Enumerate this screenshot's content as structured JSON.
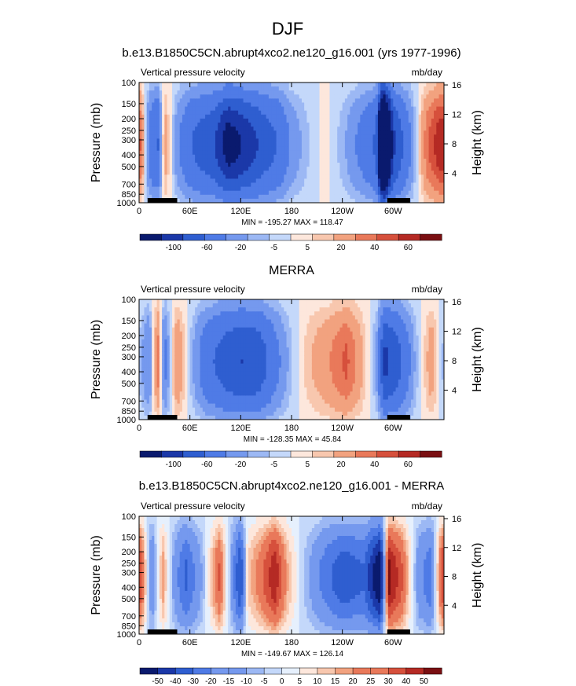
{
  "figure": {
    "title": "DJF"
  },
  "chart_data": [
    {
      "type": "heatmap",
      "title": "b.e13.B1850C5CN.abrupt4xco2.ne120_g16.001 (yrs 1977-1996)",
      "left_label": "Vertical pressure velocity",
      "right_label": "mb/day",
      "ylabel": "Pressure (mb)",
      "ylabel_right": "Height (km)",
      "pressure_ticks": [
        "100",
        "150",
        "200",
        "250",
        "300",
        "400",
        "500",
        "700",
        "850",
        "1000"
      ],
      "pressure_values": [
        100,
        150,
        200,
        250,
        300,
        400,
        500,
        700,
        850,
        1000
      ],
      "height_ticks": [
        "4",
        "8",
        "12",
        "16"
      ],
      "xticks": [
        "0",
        "60E",
        "120E",
        "180",
        "120W",
        "60W"
      ],
      "xtick_lon": [
        0,
        60,
        120,
        180,
        240,
        300
      ],
      "xlim": [
        0,
        360
      ],
      "ylim_mb": [
        1000,
        100
      ],
      "stats": "MIN = -195.27  MAX = 118.47",
      "colorbar_labels": [
        "-100",
        "-60",
        "-20",
        "-5",
        "5",
        "20",
        "40",
        "60"
      ],
      "colorbar_levels": [
        -100,
        -80,
        -60,
        -40,
        -20,
        -10,
        -5,
        0,
        5,
        10,
        20,
        30,
        40,
        50,
        60
      ],
      "bands": [
        {
          "lon": 0,
          "v": 35
        },
        {
          "lon": 12,
          "v": -25
        },
        {
          "lon": 22,
          "v": -40
        },
        {
          "lon": 30,
          "v": 15
        },
        {
          "lon": 45,
          "v": -15
        },
        {
          "lon": 60,
          "v": -35
        },
        {
          "lon": 90,
          "v": -55
        },
        {
          "lon": 105,
          "v": -85
        },
        {
          "lon": 118,
          "v": -75
        },
        {
          "lon": 135,
          "v": -60
        },
        {
          "lon": 150,
          "v": -45
        },
        {
          "lon": 165,
          "v": -35
        },
        {
          "lon": 180,
          "v": -15
        },
        {
          "lon": 200,
          "v": -5
        },
        {
          "lon": 220,
          "v": 3
        },
        {
          "lon": 245,
          "v": -10
        },
        {
          "lon": 265,
          "v": -25
        },
        {
          "lon": 280,
          "v": -40
        },
        {
          "lon": 288,
          "v": -190
        },
        {
          "lon": 300,
          "v": -60
        },
        {
          "lon": 320,
          "v": -20
        },
        {
          "lon": 340,
          "v": 25
        },
        {
          "lon": 355,
          "v": 45
        }
      ]
    },
    {
      "type": "heatmap",
      "title": "MERRA",
      "left_label": "Vertical pressure velocity",
      "right_label": "mb/day",
      "ylabel": "Pressure (mb)",
      "ylabel_right": "Height (km)",
      "pressure_ticks": [
        "100",
        "150",
        "200",
        "250",
        "300",
        "400",
        "500",
        "700",
        "850",
        "1000"
      ],
      "pressure_values": [
        100,
        150,
        200,
        250,
        300,
        400,
        500,
        700,
        850,
        1000
      ],
      "height_ticks": [
        "4",
        "8",
        "12",
        "16"
      ],
      "xticks": [
        "0",
        "60E",
        "120E",
        "180",
        "120W",
        "60W"
      ],
      "xtick_lon": [
        0,
        60,
        120,
        180,
        240,
        300
      ],
      "xlim": [
        0,
        360
      ],
      "ylim_mb": [
        1000,
        100
      ],
      "stats": "MIN = -128.35  MAX = 45.84",
      "colorbar_labels": [
        "-100",
        "-60",
        "-20",
        "-5",
        "5",
        "20",
        "40",
        "60"
      ],
      "colorbar_levels": [
        -100,
        -80,
        -60,
        -40,
        -20,
        -10,
        -5,
        0,
        5,
        10,
        20,
        30,
        40,
        50,
        60
      ],
      "bands": [
        {
          "lon": 0,
          "v": -5
        },
        {
          "lon": 12,
          "v": -20
        },
        {
          "lon": 22,
          "v": 25
        },
        {
          "lon": 30,
          "v": -25
        },
        {
          "lon": 45,
          "v": 20
        },
        {
          "lon": 60,
          "v": -5
        },
        {
          "lon": 80,
          "v": -30
        },
        {
          "lon": 100,
          "v": -45
        },
        {
          "lon": 120,
          "v": -55
        },
        {
          "lon": 140,
          "v": -50
        },
        {
          "lon": 160,
          "v": -25
        },
        {
          "lon": 180,
          "v": -5
        },
        {
          "lon": 200,
          "v": 8
        },
        {
          "lon": 225,
          "v": 18
        },
        {
          "lon": 245,
          "v": 30
        },
        {
          "lon": 262,
          "v": 12
        },
        {
          "lon": 280,
          "v": -10
        },
        {
          "lon": 290,
          "v": -60
        },
        {
          "lon": 305,
          "v": -45
        },
        {
          "lon": 325,
          "v": -10
        },
        {
          "lon": 345,
          "v": 15
        },
        {
          "lon": 358,
          "v": -5
        }
      ]
    },
    {
      "type": "heatmap",
      "title": "b.e13.B1850C5CN.abrupt4xco2.ne120_g16.001 - MERRA",
      "left_label": "Vertical pressure velocity",
      "right_label": "mb/day",
      "ylabel": "Pressure (mb)",
      "ylabel_right": "Height (km)",
      "pressure_ticks": [
        "100",
        "150",
        "200",
        "250",
        "300",
        "400",
        "500",
        "700",
        "850",
        "1000"
      ],
      "pressure_values": [
        100,
        150,
        200,
        250,
        300,
        400,
        500,
        700,
        850,
        1000
      ],
      "height_ticks": [
        "4",
        "8",
        "12",
        "16"
      ],
      "xticks": [
        "0",
        "60E",
        "120E",
        "180",
        "120W",
        "60W"
      ],
      "xtick_lon": [
        0,
        60,
        120,
        180,
        240,
        300
      ],
      "xlim": [
        0,
        360
      ],
      "ylim_mb": [
        1000,
        100
      ],
      "stats": "MIN = -149.67  MAX = 126.14",
      "colorbar_labels": [
        "-50",
        "-40",
        "-30",
        "-20",
        "-15",
        "-10",
        "-5",
        "0",
        "5",
        "10",
        "15",
        "20",
        "25",
        "30",
        "40",
        "50"
      ],
      "colorbar_levels": [
        -60,
        -50,
        -40,
        -30,
        -20,
        -15,
        -10,
        -5,
        0,
        5,
        10,
        15,
        20,
        25,
        30,
        40,
        50,
        60
      ],
      "bands": [
        {
          "lon": 0,
          "v": 40
        },
        {
          "lon": 15,
          "v": -20
        },
        {
          "lon": 28,
          "v": 18
        },
        {
          "lon": 40,
          "v": -10
        },
        {
          "lon": 55,
          "v": -30
        },
        {
          "lon": 75,
          "v": -8
        },
        {
          "lon": 95,
          "v": 30
        },
        {
          "lon": 110,
          "v": -15
        },
        {
          "lon": 120,
          "v": -40
        },
        {
          "lon": 128,
          "v": 10
        },
        {
          "lon": 145,
          "v": 25
        },
        {
          "lon": 160,
          "v": 45
        },
        {
          "lon": 175,
          "v": 15
        },
        {
          "lon": 195,
          "v": -5
        },
        {
          "lon": 215,
          "v": -20
        },
        {
          "lon": 240,
          "v": -35
        },
        {
          "lon": 265,
          "v": -28
        },
        {
          "lon": 285,
          "v": -60
        },
        {
          "lon": 295,
          "v": 50
        },
        {
          "lon": 310,
          "v": 30
        },
        {
          "lon": 330,
          "v": -15
        },
        {
          "lon": 345,
          "v": -25
        },
        {
          "lon": 358,
          "v": 35
        }
      ]
    }
  ],
  "palette": [
    "#0a1a6e",
    "#1b38a8",
    "#2f5ed0",
    "#4f7be6",
    "#7599ee",
    "#9cb8f4",
    "#c4d8fa",
    "#e6f0fd",
    "#fde7dc",
    "#f8c7ae",
    "#f2a27f",
    "#e9795a",
    "#d6503c",
    "#b52a24",
    "#7a0f12"
  ],
  "land_color": "#000000"
}
